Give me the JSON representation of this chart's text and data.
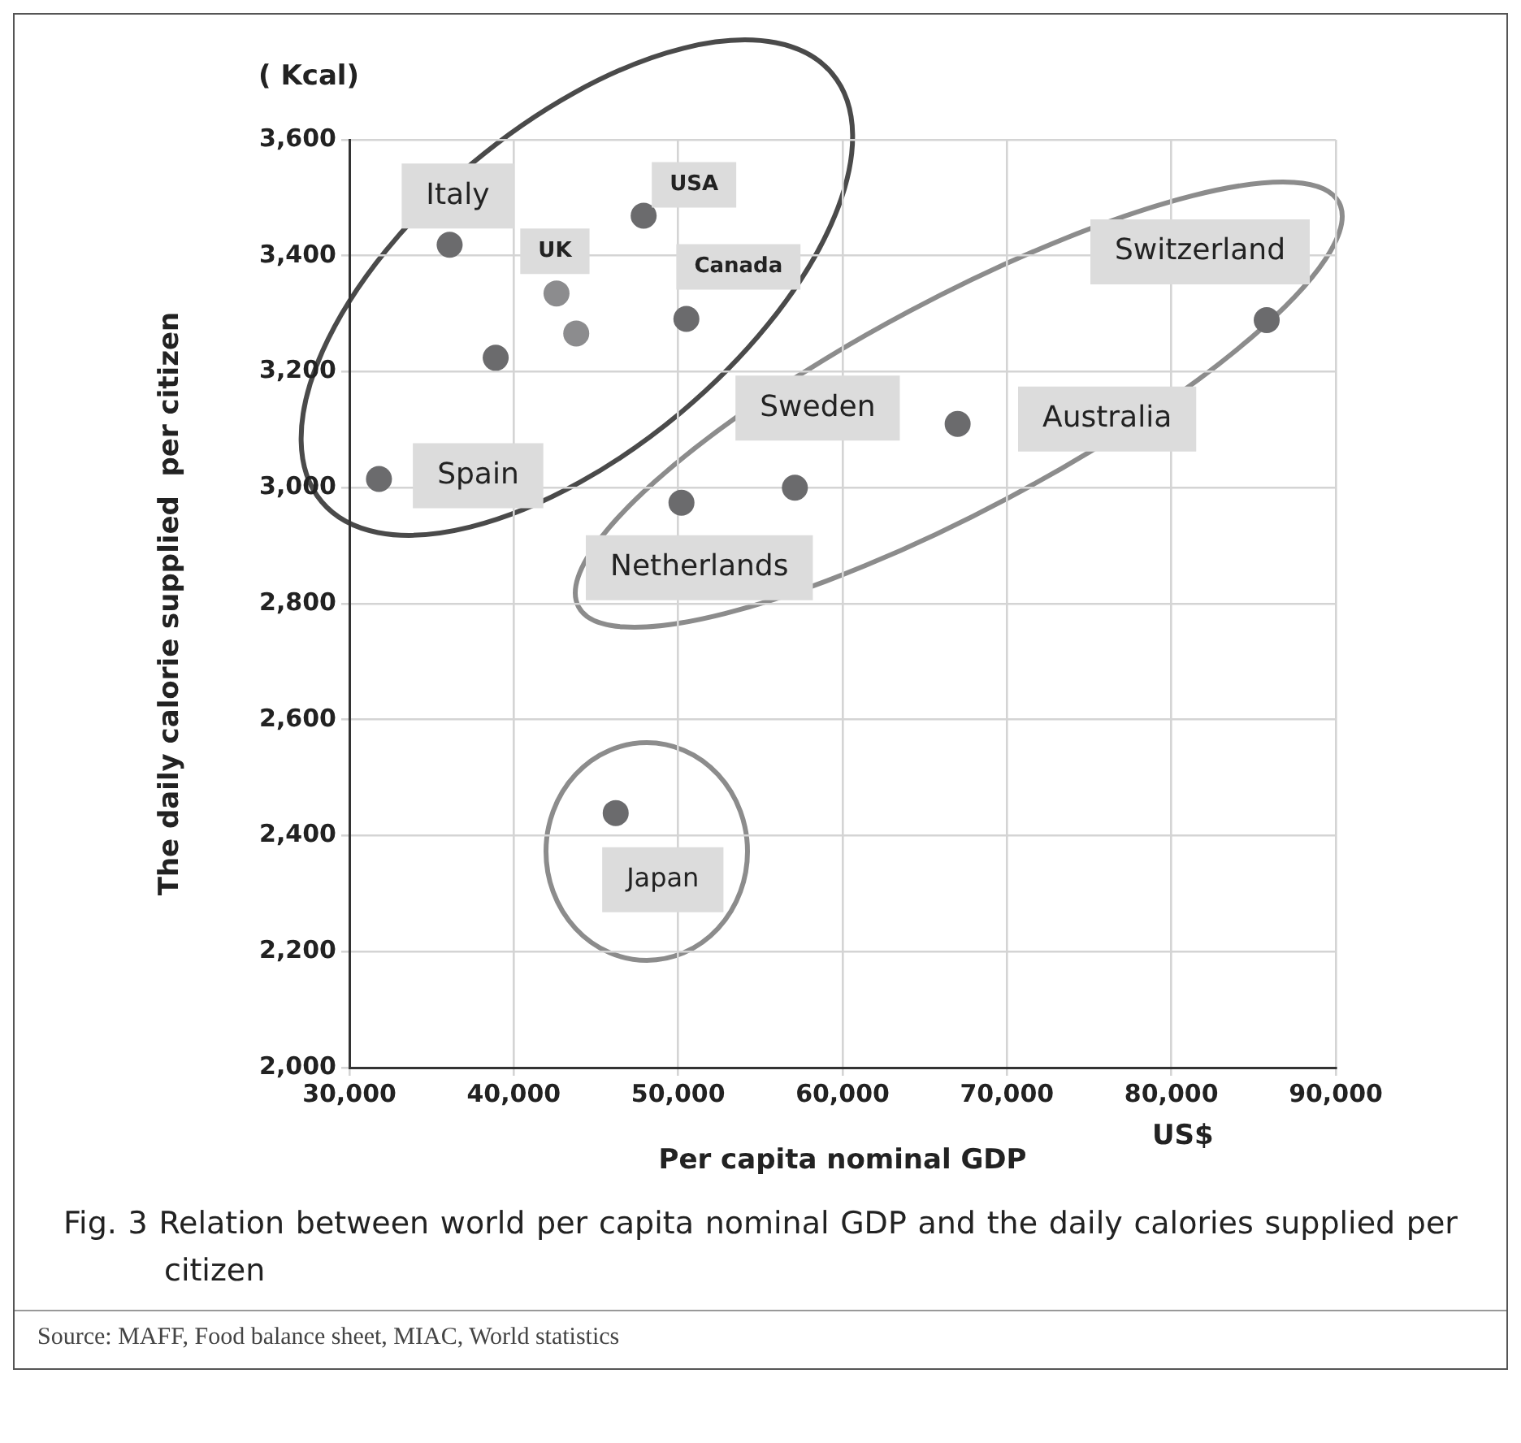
{
  "chart_data": {
    "type": "scatter",
    "xlabel": "Per capita nominal GDP",
    "ylabel": "The daily calorie supplied  per citizen",
    "x": [
      31800,
      36100,
      38900,
      42600,
      43800,
      47900,
      50500,
      50200,
      57100,
      67000,
      85800,
      46200
    ],
    "series": [
      {
        "colors": [
          "#6b6b6d",
          "#6b6b6d",
          "#6b6b6d",
          "#8c8c8e",
          "#8c8c8e",
          "#6b6b6d",
          "#6b6b6d",
          "#6b6b6d",
          "#6b6b6d",
          "#6b6b6d",
          "#6b6b6d",
          "#6b6b6d"
        ],
        "values": [
          3015,
          3419,
          3224,
          3335,
          3266,
          3469,
          3291,
          2974,
          3000,
          3110,
          3289,
          2439
        ]
      }
    ],
    "xlim": [
      30000,
      90000
    ],
    "xticks": [
      {
        "value": 30000,
        "label": "30,000"
      },
      {
        "value": 40000,
        "label": "40,000"
      },
      {
        "value": 50000,
        "label": "50,000"
      },
      {
        "value": 60000,
        "label": "60,000"
      },
      {
        "value": 70000,
        "label": "70,000"
      },
      {
        "value": 80000,
        "label": "80,000"
      },
      {
        "value": 90000,
        "label": "90,000"
      }
    ],
    "ylim": [
      2000,
      3600
    ],
    "yticks": [
      {
        "value": 2000,
        "label": "2,000"
      },
      {
        "value": 2200,
        "label": "2,200"
      },
      {
        "value": 2400,
        "label": "2,400"
      },
      {
        "value": 2600,
        "label": "2,600"
      },
      {
        "value": 2800,
        "label": "2,800"
      },
      {
        "value": 3000,
        "label": "3,000"
      },
      {
        "value": 3200,
        "label": "3,200"
      },
      {
        "value": 3400,
        "label": "3,400"
      },
      {
        "value": 3600,
        "label": "3,600"
      }
    ],
    "grid": true,
    "marker": "circle",
    "annotations": [
      {
        "text": "Italy",
        "x": 36100,
        "y": 3419
      },
      {
        "text": "USA",
        "x": 47900,
        "y": 3469
      },
      {
        "text": "UK",
        "x": 42600,
        "y": 3335
      },
      {
        "text": "Canada",
        "x": 50500,
        "y": 3291
      },
      {
        "text": "Spain",
        "x": 31800,
        "y": 3015
      },
      {
        "text": "Sweden",
        "x": 57100,
        "y": 3000
      },
      {
        "text": "Netherlands",
        "x": 50200,
        "y": 2974
      },
      {
        "text": "Australia",
        "x": 67000,
        "y": 3110
      },
      {
        "text": "Switzerland",
        "x": 85800,
        "y": 3289
      },
      {
        "text": "Japan",
        "x": 46200,
        "y": 2439
      },
      "( Kcal)",
      "US$",
      "Fig. 3  Relation between world per capita nominal GDP and the daily calories supplied per citizen",
      "Source: MAFF, Food balance sheet, MIAC, World statistics"
    ]
  }
}
